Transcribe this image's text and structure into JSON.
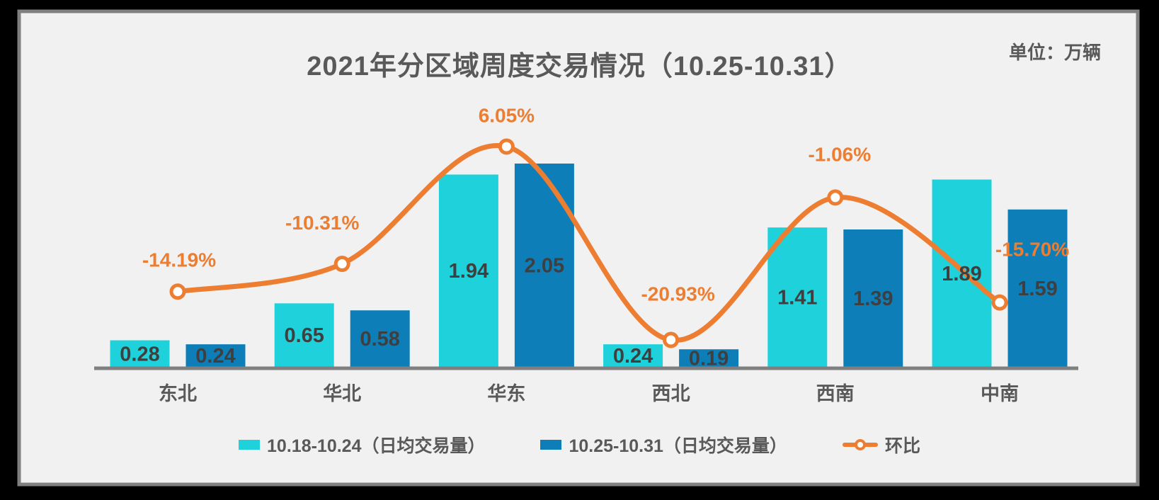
{
  "page": {
    "background": "#000000",
    "panel_bg": "#F1F1F1",
    "panel_border": "#808080",
    "axis_color": "#7F7F7F"
  },
  "header": {
    "title": "2021年分区域周度交易情况（10.25-10.31）",
    "unit_label": "单位：万辆"
  },
  "chart_data": {
    "type": "bar",
    "subtype": "grouped-bars-with-line",
    "categories": [
      "东北",
      "华北",
      "华东",
      "西北",
      "西南",
      "中南"
    ],
    "series": [
      {
        "name": "10.18-10.24（日均交易量）",
        "type": "bar",
        "color": "#1ED1DB",
        "values": [
          0.28,
          0.65,
          1.94,
          0.24,
          1.41,
          1.89
        ],
        "value_labels": [
          "0.28",
          "0.65",
          "1.94",
          "0.24",
          "1.41",
          "1.89"
        ]
      },
      {
        "name": "10.25-10.31（日均交易量）",
        "type": "bar",
        "color": "#0D7EB7",
        "values": [
          0.24,
          0.58,
          2.05,
          0.19,
          1.39,
          1.59
        ],
        "value_labels": [
          "0.24",
          "0.58",
          "2.05",
          "0.19",
          "1.39",
          "1.59"
        ]
      },
      {
        "name": "环比",
        "type": "line",
        "color": "#ED7D31",
        "marker": "open-circle",
        "values": [
          -14.19,
          -10.31,
          6.05,
          -20.93,
          -1.06,
          -15.7
        ],
        "value_labels": [
          "-14.19%",
          "-10.31%",
          "6.05%",
          "-20.93%",
          "-1.06%",
          "-15.70%"
        ]
      }
    ],
    "title": "2021年分区域周度交易情况（10.25-10.31）",
    "unit": "万辆",
    "xlabel": "",
    "ylabel": "",
    "grid": false,
    "legend_position": "bottom",
    "bar_axis_range": [
      0,
      2.4
    ],
    "line_axis_range_pct": [
      -25,
      10
    ]
  }
}
